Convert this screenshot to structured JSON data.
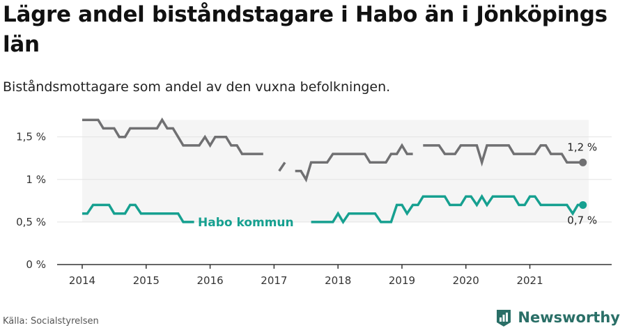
{
  "title": "Lägre andel biståndstagare i Habo än i Jönköpings län",
  "subtitle": "Biståndsmottagare som andel av den vuxna befolkningen.",
  "source": "Källa: Socialstyrelsen",
  "brand": "Newsworthy",
  "colors": {
    "county": "#707072",
    "municipality": "#16a090",
    "band": "#f5f5f5",
    "grid": "#e3e3e3",
    "axis": "#333333"
  },
  "chart_data": {
    "type": "line",
    "title": "Lägre andel biståndstagare i Habo än i Jönköpings län",
    "xlabel": "",
    "ylabel": "",
    "xlim": [
      2014.0,
      2021.92
    ],
    "ylim": [
      0,
      1.8
    ],
    "y_ticks": [
      {
        "value": 0,
        "label": "0 %"
      },
      {
        "value": 0.5,
        "label": "0,5 %"
      },
      {
        "value": 1,
        "label": "1 %"
      },
      {
        "value": 1.5,
        "label": "1,5 %"
      }
    ],
    "x_ticks": [
      {
        "value": 2014,
        "label": "2014"
      },
      {
        "value": 2015,
        "label": "2015"
      },
      {
        "value": 2016,
        "label": "2016"
      },
      {
        "value": 2017,
        "label": "2017"
      },
      {
        "value": 2018,
        "label": "2018"
      },
      {
        "value": 2019,
        "label": "2019"
      },
      {
        "value": 2020,
        "label": "2020"
      },
      {
        "value": 2021,
        "label": "2021"
      }
    ],
    "grid": true,
    "series": [
      {
        "name": "",
        "role": "county",
        "end_label": "1,2 %",
        "segments": [
          [
            [
              2014.0,
              1.7
            ],
            [
              2014.25,
              1.7
            ],
            [
              2014.33,
              1.6
            ],
            [
              2014.5,
              1.6
            ],
            [
              2014.58,
              1.5
            ],
            [
              2014.67,
              1.5
            ],
            [
              2014.75,
              1.6
            ],
            [
              2015.17,
              1.6
            ],
            [
              2015.25,
              1.7
            ],
            [
              2015.33,
              1.6
            ],
            [
              2015.42,
              1.6
            ],
            [
              2015.5,
              1.5
            ],
            [
              2015.58,
              1.4
            ],
            [
              2015.83,
              1.4
            ],
            [
              2015.92,
              1.5
            ],
            [
              2016.0,
              1.4
            ],
            [
              2016.08,
              1.5
            ],
            [
              2016.25,
              1.5
            ],
            [
              2016.33,
              1.4
            ],
            [
              2016.42,
              1.4
            ],
            [
              2016.5,
              1.3
            ],
            [
              2016.83,
              1.3
            ]
          ],
          [
            [
              2017.08,
              1.1
            ],
            [
              2017.17,
              1.2
            ]
          ],
          [
            [
              2017.33,
              1.1
            ],
            [
              2017.42,
              1.1
            ],
            [
              2017.5,
              1.0
            ],
            [
              2017.58,
              1.2
            ],
            [
              2017.83,
              1.2
            ],
            [
              2017.92,
              1.3
            ],
            [
              2018.42,
              1.3
            ],
            [
              2018.5,
              1.2
            ],
            [
              2018.75,
              1.2
            ],
            [
              2018.83,
              1.3
            ],
            [
              2018.92,
              1.3
            ],
            [
              2019.0,
              1.4
            ],
            [
              2019.08,
              1.3
            ],
            [
              2019.17,
              1.3
            ]
          ],
          [
            [
              2019.33,
              1.4
            ],
            [
              2019.58,
              1.4
            ],
            [
              2019.67,
              1.3
            ],
            [
              2019.83,
              1.3
            ],
            [
              2019.92,
              1.4
            ],
            [
              2020.17,
              1.4
            ],
            [
              2020.25,
              1.2
            ],
            [
              2020.33,
              1.4
            ],
            [
              2020.67,
              1.4
            ],
            [
              2020.75,
              1.3
            ],
            [
              2021.08,
              1.3
            ],
            [
              2021.17,
              1.4
            ],
            [
              2021.25,
              1.4
            ],
            [
              2021.33,
              1.3
            ],
            [
              2021.5,
              1.3
            ],
            [
              2021.58,
              1.2
            ],
            [
              2021.83,
              1.2
            ]
          ]
        ]
      },
      {
        "name": "Habo kommun",
        "role": "municipality",
        "end_label": "0,7 %",
        "segments": [
          [
            [
              2014.0,
              0.6
            ],
            [
              2014.08,
              0.6
            ],
            [
              2014.17,
              0.7
            ],
            [
              2014.42,
              0.7
            ],
            [
              2014.5,
              0.6
            ],
            [
              2014.67,
              0.6
            ],
            [
              2014.75,
              0.7
            ],
            [
              2014.83,
              0.7
            ],
            [
              2014.92,
              0.6
            ],
            [
              2015.5,
              0.6
            ],
            [
              2015.58,
              0.5
            ],
            [
              2015.75,
              0.5
            ]
          ],
          [
            [
              2017.58,
              0.5
            ],
            [
              2017.92,
              0.5
            ],
            [
              2018.0,
              0.6
            ],
            [
              2018.08,
              0.5
            ],
            [
              2018.17,
              0.6
            ],
            [
              2018.58,
              0.6
            ],
            [
              2018.67,
              0.5
            ],
            [
              2018.83,
              0.5
            ],
            [
              2018.92,
              0.7
            ],
            [
              2019.0,
              0.7
            ],
            [
              2019.08,
              0.6
            ],
            [
              2019.17,
              0.7
            ],
            [
              2019.25,
              0.7
            ],
            [
              2019.33,
              0.8
            ],
            [
              2019.67,
              0.8
            ],
            [
              2019.75,
              0.7
            ],
            [
              2019.92,
              0.7
            ],
            [
              2020.0,
              0.8
            ],
            [
              2020.08,
              0.8
            ],
            [
              2020.17,
              0.7
            ],
            [
              2020.25,
              0.8
            ],
            [
              2020.33,
              0.7
            ],
            [
              2020.42,
              0.8
            ],
            [
              2020.75,
              0.8
            ],
            [
              2020.83,
              0.7
            ],
            [
              2020.92,
              0.7
            ],
            [
              2021.0,
              0.8
            ],
            [
              2021.08,
              0.8
            ],
            [
              2021.17,
              0.7
            ],
            [
              2021.58,
              0.7
            ],
            [
              2021.67,
              0.6
            ],
            [
              2021.75,
              0.7
            ],
            [
              2021.83,
              0.7
            ]
          ]
        ]
      }
    ]
  }
}
